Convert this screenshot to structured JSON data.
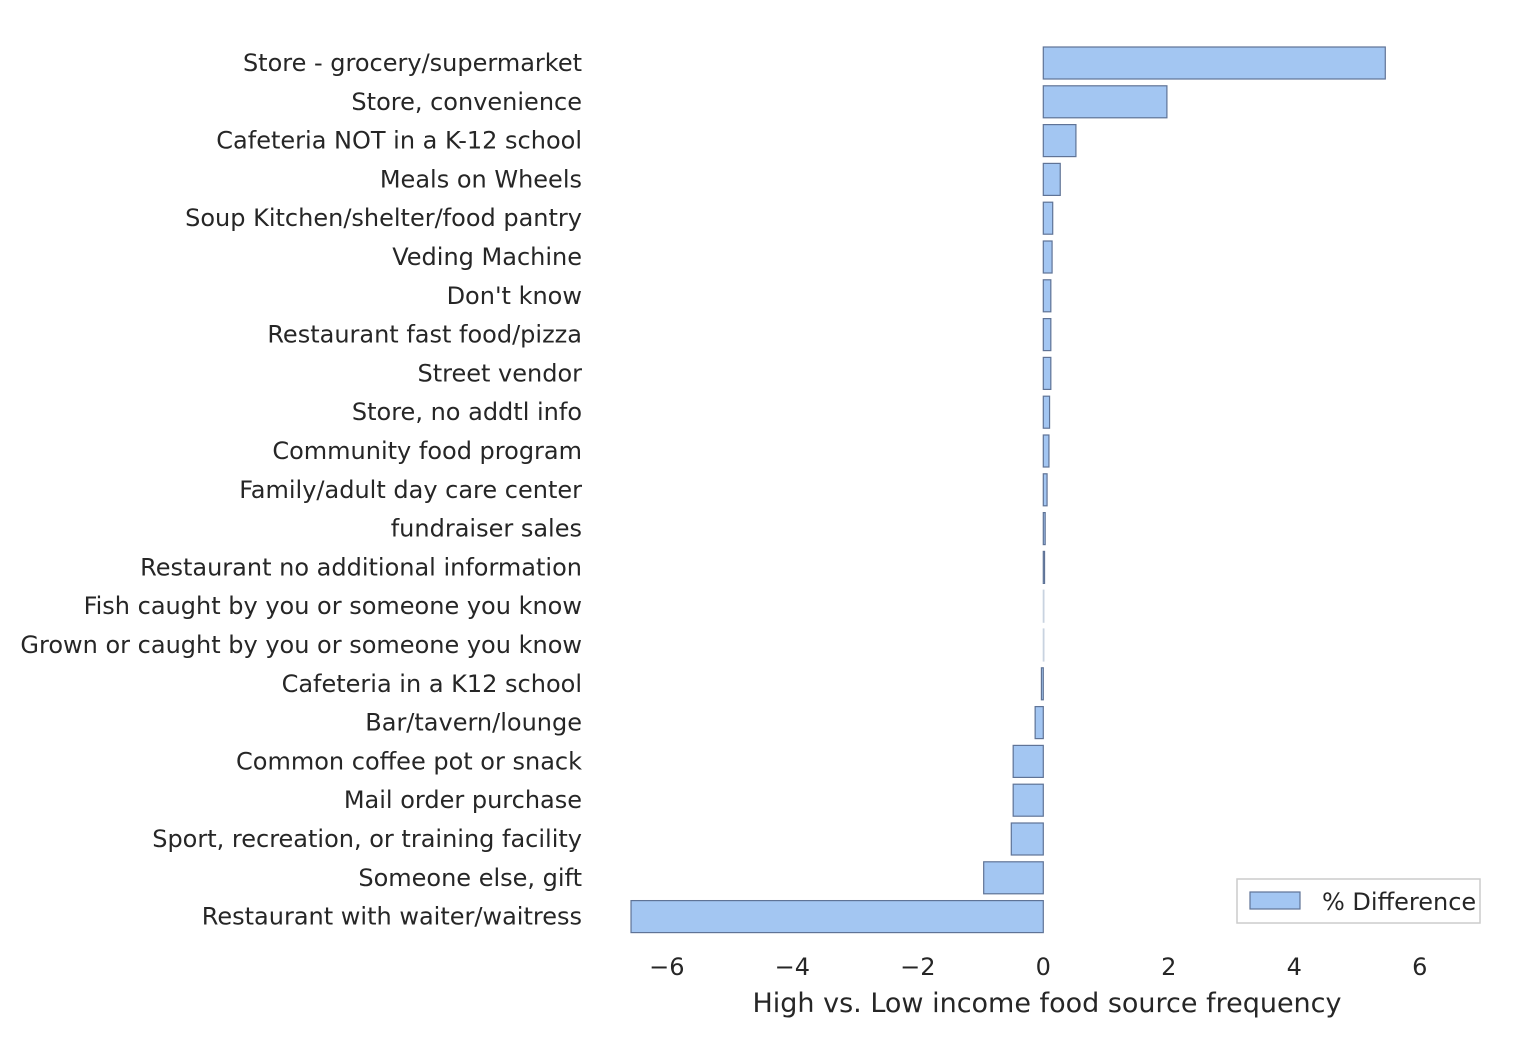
{
  "chart_data": {
    "type": "bar",
    "orientation": "horizontal",
    "categories": [
      "Store - grocery/supermarket",
      "Store, convenience",
      "Cafeteria NOT in a K-12 school",
      "Meals on Wheels",
      "Soup Kitchen/shelter/food pantry",
      "Veding Machine",
      "Don't know",
      "Restaurant fast food/pizza",
      "Street vendor",
      "Store, no addtl info",
      "Community food program",
      "Family/adult day care center",
      "fundraiser sales",
      "Restaurant no additional information",
      "Fish caught by you or someone you know",
      "Grown or caught by you or someone you know",
      "Cafeteria in a K12 school",
      "Bar/tavern/lounge",
      "Common coffee pot or snack",
      "Mail order purchase",
      "Sport, recreation, or training facility",
      "Someone else, gift",
      "Restaurant with waiter/waitress"
    ],
    "series": [
      {
        "name": "% Difference",
        "values": [
          5.45,
          1.97,
          0.52,
          0.27,
          0.15,
          0.14,
          0.12,
          0.12,
          0.12,
          0.1,
          0.09,
          0.06,
          0.03,
          0.02,
          0.0,
          0.0,
          -0.03,
          -0.13,
          -0.48,
          -0.48,
          -0.51,
          -0.95,
          -6.57
        ]
      }
    ],
    "xlabel": "High vs. Low income food source frequency",
    "ylabel": "",
    "xlim": [
      -6.65,
      6.8
    ],
    "xticks": [
      -6,
      -4,
      -2,
      0,
      2,
      4,
      6
    ],
    "xtick_labels": [
      "−6",
      "−4",
      "−2",
      "0",
      "2",
      "4",
      "6"
    ],
    "grid": false,
    "legend_position": "lower-right",
    "colors": {
      "bar_fill": "#a3c6f2",
      "bar_edge": "#5f7396",
      "text": "#262626",
      "legend_border": "#cccccc"
    }
  }
}
